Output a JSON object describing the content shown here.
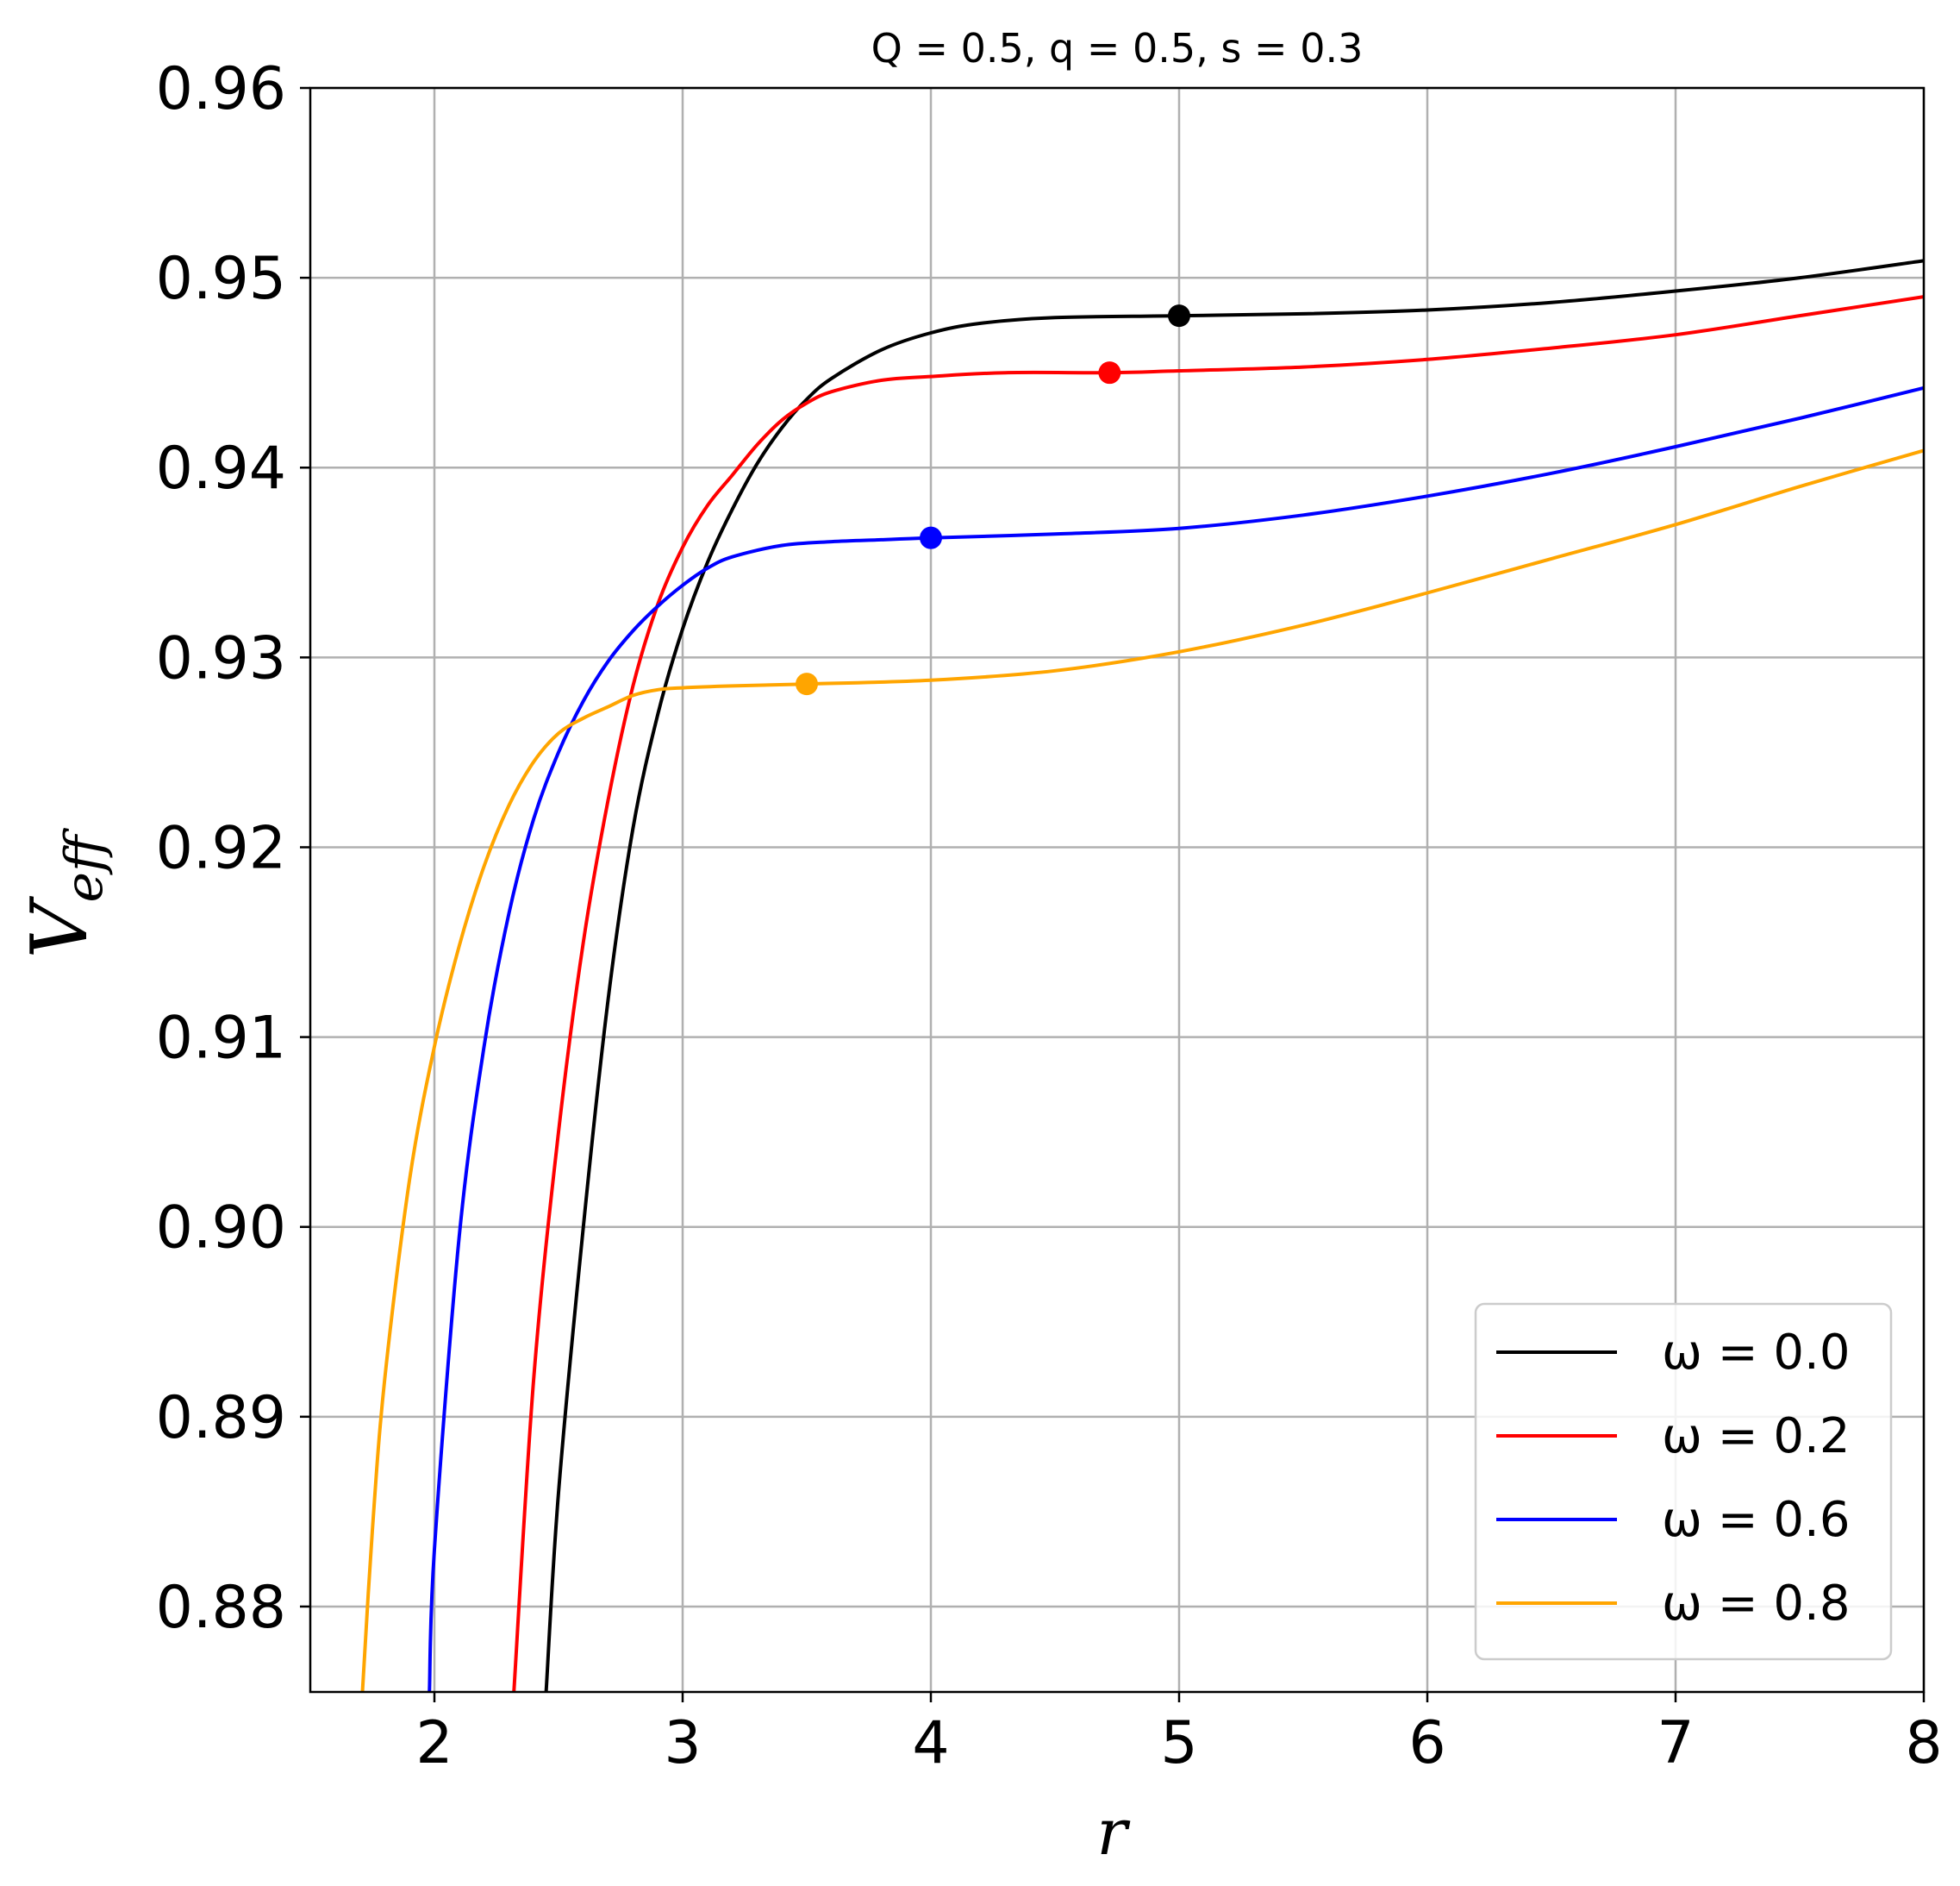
{
  "chart_data": {
    "type": "line",
    "title": "Q = 0.5, q = 0.5, s = 0.3",
    "xlabel": "r",
    "ylabel": "V_eff",
    "xlim": [
      1.5,
      8
    ],
    "ylim": [
      0.8755,
      0.96
    ],
    "xticks": [
      2,
      3,
      4,
      5,
      6,
      7,
      8
    ],
    "yticks": [
      0.88,
      0.89,
      0.9,
      0.91,
      0.92,
      0.93,
      0.94,
      0.95,
      0.96
    ],
    "ytick_labels": [
      "0.88",
      "0.89",
      "0.90",
      "0.91",
      "0.92",
      "0.93",
      "0.94",
      "0.95",
      "0.96"
    ],
    "grid": true,
    "legend_position": "lower-right",
    "series": [
      {
        "name": "ω = 0.0",
        "color": "#000000",
        "x": [
          2.45,
          2.5,
          2.6,
          2.7,
          2.8,
          2.9,
          3.0,
          3.1,
          3.2,
          3.3,
          3.4,
          3.5,
          3.6,
          3.8,
          4.0,
          4.2,
          4.5,
          5.0,
          5.5,
          6.0,
          6.5,
          7.0,
          7.5,
          8.0
        ],
        "y": [
          0.8755,
          0.886,
          0.9,
          0.912,
          0.921,
          0.927,
          0.9315,
          0.935,
          0.9378,
          0.9402,
          0.9421,
          0.9436,
          0.9447,
          0.9462,
          0.9471,
          0.9476,
          0.9479,
          0.948,
          0.9481,
          0.9483,
          0.9487,
          0.9493,
          0.95,
          0.9509
        ]
      },
      {
        "name": "ω = 0.2",
        "color": "#ff0000",
        "x": [
          2.32,
          2.4,
          2.5,
          2.6,
          2.7,
          2.8,
          2.9,
          3.0,
          3.1,
          3.2,
          3.3,
          3.4,
          3.5,
          3.6,
          3.8,
          4.0,
          4.3,
          4.72,
          5.0,
          5.5,
          6.0,
          6.5,
          7.0,
          7.5,
          8.0
        ],
        "y": [
          0.8755,
          0.892,
          0.905,
          0.915,
          0.9225,
          0.9285,
          0.9328,
          0.9358,
          0.938,
          0.9396,
          0.9412,
          0.9425,
          0.9434,
          0.944,
          0.9446,
          0.9448,
          0.945,
          0.945,
          0.9451,
          0.9453,
          0.9457,
          0.9463,
          0.947,
          0.948,
          0.949
        ]
      },
      {
        "name": "ω = 0.6",
        "color": "#0000ff",
        "x": [
          1.98,
          2.0,
          2.1,
          2.2,
          2.3,
          2.4,
          2.5,
          2.6,
          2.7,
          2.8,
          2.9,
          3.0,
          3.1,
          3.2,
          3.4,
          3.6,
          3.8,
          4.0,
          4.5,
          5.0,
          5.5,
          6.0,
          6.5,
          7.0,
          7.5,
          8.0
        ],
        "y": [
          0.8755,
          0.883,
          0.8995,
          0.9095,
          0.9165,
          0.9215,
          0.925,
          0.9277,
          0.9298,
          0.9314,
          0.9327,
          0.9338,
          0.9347,
          0.9353,
          0.9359,
          0.9361,
          0.9362,
          0.9363,
          0.9365,
          0.9368,
          0.9375,
          0.9385,
          0.9397,
          0.9411,
          0.9426,
          0.9442
        ]
      },
      {
        "name": "ω = 0.8",
        "color": "#ffa500",
        "x": [
          1.71,
          1.75,
          1.8,
          1.9,
          2.0,
          2.1,
          2.2,
          2.3,
          2.4,
          2.5,
          2.6,
          2.7,
          2.8,
          2.9,
          3.0,
          3.2,
          3.5,
          4.0,
          4.5,
          5.0,
          5.5,
          6.0,
          6.5,
          7.0,
          7.5,
          8.0
        ],
        "y": [
          0.8755,
          0.884,
          0.892,
          0.9025,
          0.9095,
          0.9148,
          0.919,
          0.9222,
          0.9245,
          0.926,
          0.9268,
          0.9274,
          0.928,
          0.9283,
          0.9284,
          0.9285,
          0.9286,
          0.9288,
          0.9293,
          0.9303,
          0.9317,
          0.9334,
          0.9352,
          0.937,
          0.939,
          0.9409
        ]
      }
    ],
    "markers": [
      {
        "series": "ω = 0.0",
        "x": 5.0,
        "y": 0.948,
        "color": "#000000"
      },
      {
        "series": "ω = 0.2",
        "x": 4.72,
        "y": 0.945,
        "color": "#ff0000"
      },
      {
        "series": "ω = 0.6",
        "x": 4.0,
        "y": 0.9363,
        "color": "#0000ff"
      },
      {
        "series": "ω = 0.8",
        "x": 3.5,
        "y": 0.9286,
        "color": "#ffa500"
      }
    ]
  }
}
